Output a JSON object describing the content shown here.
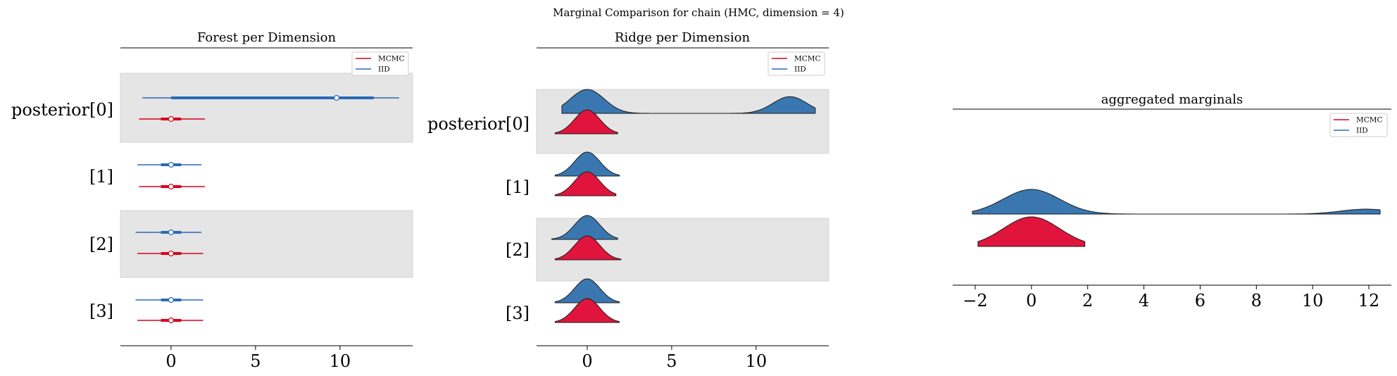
{
  "suptitle": "Marginal Comparison for chain (HMC, dimension = 4)",
  "colors": {
    "mcmc": "#d7001e",
    "iid": "#2b6ab5",
    "iid_fill": "#3a77b0",
    "mcmc_fill": "#e0143c",
    "band": "#e5e5e5"
  },
  "legend": {
    "mcmc": "MCMC",
    "iid": "IID"
  },
  "chart_data": [
    {
      "type": "forest",
      "title": "Forest per Dimension",
      "xlim": [
        -3,
        14.3
      ],
      "xticks": [
        0,
        5,
        10
      ],
      "categories": [
        "posterior[0]",
        "[1]",
        "[2]",
        "[3]"
      ],
      "series": [
        {
          "name": "IID",
          "rows": [
            {
              "hdi": [
                -1.7,
                13.5
              ],
              "iqr": [
                0.0,
                12.0
              ],
              "median": 9.8
            },
            {
              "hdi": [
                -2.0,
                1.8
              ],
              "iqr": [
                -0.6,
                0.6
              ],
              "median": 0.0
            },
            {
              "hdi": [
                -2.1,
                1.8
              ],
              "iqr": [
                -0.6,
                0.6
              ],
              "median": 0.0
            },
            {
              "hdi": [
                -2.1,
                1.9
              ],
              "iqr": [
                -0.6,
                0.6
              ],
              "median": 0.0
            }
          ]
        },
        {
          "name": "MCMC",
          "rows": [
            {
              "hdi": [
                -1.9,
                2.0
              ],
              "iqr": [
                -0.6,
                0.6
              ],
              "median": 0.0
            },
            {
              "hdi": [
                -1.9,
                2.0
              ],
              "iqr": [
                -0.6,
                0.6
              ],
              "median": 0.0
            },
            {
              "hdi": [
                -2.0,
                1.9
              ],
              "iqr": [
                -0.6,
                0.6
              ],
              "median": 0.0
            },
            {
              "hdi": [
                -2.0,
                1.9
              ],
              "iqr": [
                -0.6,
                0.6
              ],
              "median": 0.0
            }
          ]
        }
      ]
    },
    {
      "type": "ridge",
      "title": "Ridge per Dimension",
      "xlim": [
        -3,
        14.3
      ],
      "xticks": [
        0,
        5,
        10
      ],
      "categories": [
        "posterior[0]",
        "[1]",
        "[2]",
        "[3]"
      ],
      "series": [
        {
          "name": "IID",
          "rows": [
            {
              "range": [
                -1.5,
                13.5
              ],
              "peaks": [
                [
                  0,
                  1.0,
                  1.0
                ],
                [
                  12,
                  0.7,
                  1.0
                ]
              ]
            },
            {
              "range": [
                -1.9,
                1.9
              ],
              "peaks": [
                [
                  0,
                  1.0,
                  0.75
                ]
              ]
            },
            {
              "range": [
                -2.1,
                1.8
              ],
              "peaks": [
                [
                  0,
                  1.0,
                  0.75
                ]
              ]
            },
            {
              "range": [
                -1.9,
                1.9
              ],
              "peaks": [
                [
                  0,
                  1.0,
                  0.75
                ]
              ]
            }
          ]
        },
        {
          "name": "MCMC",
          "rows": [
            {
              "range": [
                -1.9,
                1.8
              ],
              "peaks": [
                [
                  0,
                  1.0,
                  0.75
                ]
              ]
            },
            {
              "range": [
                -1.9,
                1.7
              ],
              "peaks": [
                [
                  0,
                  1.0,
                  0.75
                ]
              ]
            },
            {
              "range": [
                -1.9,
                2.0
              ],
              "peaks": [
                [
                  0,
                  1.0,
                  0.75
                ]
              ]
            },
            {
              "range": [
                -1.9,
                1.9
              ],
              "peaks": [
                [
                  0,
                  1.0,
                  0.75
                ]
              ]
            }
          ]
        }
      ]
    },
    {
      "type": "ridge",
      "title": "aggregated marginals",
      "xlim": [
        -2.8,
        12.8
      ],
      "xticks": [
        -2,
        0,
        2,
        4,
        6,
        8,
        10,
        12
      ],
      "series": [
        {
          "name": "IID",
          "range": [
            -2.1,
            12.4
          ],
          "peaks": [
            [
              0,
              1.0,
              1.0
            ],
            [
              11.9,
              0.2,
              0.9
            ]
          ]
        },
        {
          "name": "MCMC",
          "range": [
            -1.9,
            1.9
          ],
          "peaks": [
            [
              0,
              1.0,
              1.0
            ]
          ]
        }
      ]
    }
  ]
}
